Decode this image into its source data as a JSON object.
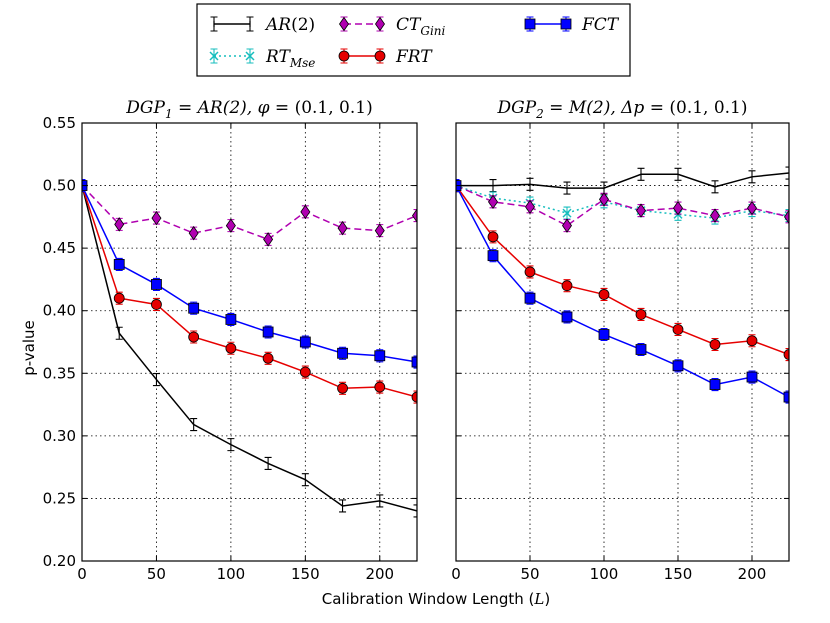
{
  "chart_data": {
    "type": "line",
    "shared_xlabel": "Calibration Window Length (L)",
    "shared_ylabel": "p-value",
    "ylim": [
      0.2,
      0.55
    ],
    "xlim": [
      0,
      225
    ],
    "y_ticks": [
      "0.20",
      "0.25",
      "0.30",
      "0.35",
      "0.40",
      "0.45",
      "0.50",
      "0.55"
    ],
    "x_ticks": [
      "0",
      "50",
      "100",
      "150",
      "200"
    ],
    "grid": true,
    "legend": {
      "placement": "top-center",
      "entries": [
        {
          "name": "AR(2)",
          "color": "#000000",
          "marker": "tick",
          "style": "solid"
        },
        {
          "name": "RT_Mse",
          "color": "#17bebe",
          "marker": "x",
          "style": "dotted"
        },
        {
          "name": "CT_Gini",
          "color": "#b000b0",
          "marker": "diamond",
          "style": "dashed"
        },
        {
          "name": "FRT",
          "color": "#e60000",
          "marker": "circle",
          "style": "solid"
        },
        {
          "name": "FCT",
          "color": "#0000ff",
          "marker": "square",
          "style": "solid"
        }
      ]
    },
    "x": [
      0,
      25,
      50,
      75,
      100,
      125,
      150,
      175,
      200,
      225
    ],
    "panels": [
      {
        "title": "DGP1 = AR(2), φ = (0.1, 0.1)",
        "title_parts": {
          "left": "DGP",
          "sub": "1",
          "eq": " = ",
          "model": "AR(2), ",
          "param": "φ",
          "rest": " = (0.1, 0.1)"
        },
        "series": [
          {
            "name": "AR(2)",
            "values": [
              0.5,
              0.382,
              0.345,
              0.309,
              0.293,
              0.278,
              0.265,
              0.244,
              0.248,
              0.24
            ]
          },
          {
            "name": "CT_Gini",
            "values": [
              0.5,
              0.469,
              0.474,
              0.462,
              0.468,
              0.457,
              0.479,
              0.466,
              0.464,
              0.476
            ]
          },
          {
            "name": "FRT",
            "values": [
              0.5,
              0.41,
              0.405,
              0.379,
              0.37,
              0.362,
              0.351,
              0.338,
              0.339,
              0.331
            ]
          },
          {
            "name": "FCT",
            "values": [
              0.5,
              0.437,
              0.421,
              0.402,
              0.393,
              0.383,
              0.375,
              0.366,
              0.364,
              0.359
            ]
          }
        ]
      },
      {
        "title": "DGP2 = M(2), Δp = (0.1, 0.1)",
        "title_parts": {
          "left": "DGP",
          "sub": "2",
          "eq": " = ",
          "model": "M(2), ",
          "param": "Δp",
          "rest": " = (0.1, 0.1)"
        },
        "series": [
          {
            "name": "AR(2)",
            "values": [
              0.5,
              0.5,
              0.501,
              0.498,
              0.498,
              0.509,
              0.509,
              0.499,
              0.507,
              0.51
            ]
          },
          {
            "name": "RT_Mse",
            "values": [
              0.5,
              0.49,
              0.486,
              0.478,
              0.487,
              0.48,
              0.477,
              0.474,
              0.48,
              0.476
            ]
          },
          {
            "name": "CT_Gini",
            "values": [
              0.5,
              0.487,
              0.483,
              0.468,
              0.489,
              0.48,
              0.482,
              0.476,
              0.482,
              0.475
            ]
          },
          {
            "name": "FRT",
            "values": [
              0.5,
              0.459,
              0.431,
              0.42,
              0.413,
              0.397,
              0.385,
              0.373,
              0.376,
              0.365
            ]
          },
          {
            "name": "FCT",
            "values": [
              0.5,
              0.444,
              0.41,
              0.395,
              0.381,
              0.369,
              0.356,
              0.341,
              0.347,
              0.331
            ]
          }
        ]
      }
    ]
  }
}
